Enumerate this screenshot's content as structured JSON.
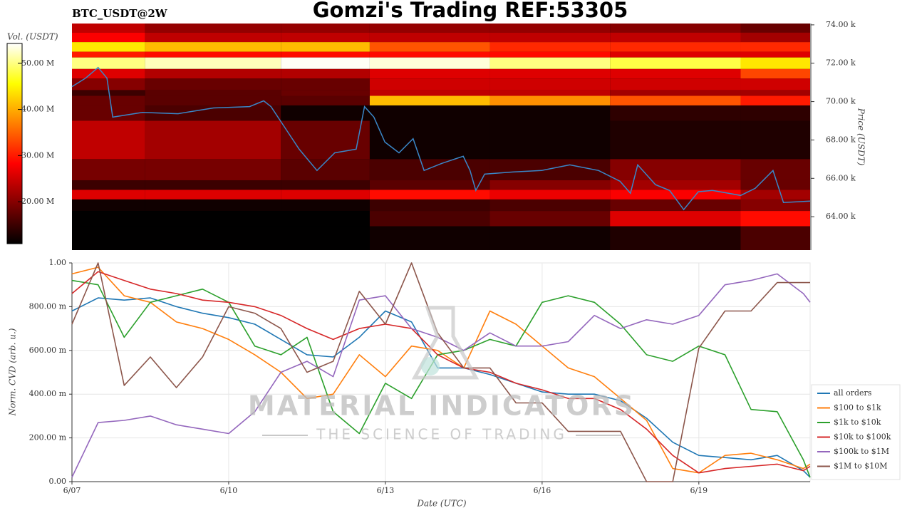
{
  "title": "Gomzi's Trading REF:53305",
  "watermark": {
    "name": "MATERIAL INDICATORS",
    "tagline": "THE SCIENCE OF TRADING"
  },
  "chart_data": [
    {
      "type": "heatmap",
      "label": "BTC_USDT@2W",
      "ylabel": "Price (USDT)",
      "xlim": [
        0,
        14.13
      ],
      "ylim": [
        62260,
        74070
      ],
      "yticks": [
        {
          "value": 64000,
          "label": "64.00 k"
        },
        {
          "value": 66000,
          "label": "66.00 k"
        },
        {
          "value": 68000,
          "label": "68.00 k"
        },
        {
          "value": 70000,
          "label": "70.00 k"
        },
        {
          "value": 72000,
          "label": "72.00 k"
        },
        {
          "value": 74000,
          "label": "74.00 k"
        }
      ],
      "x_edges": [
        0,
        1.4,
        4,
        5.7,
        8,
        10.3,
        12.8,
        14.13
      ],
      "price_edges": [
        74070,
        73600,
        73100,
        72600,
        72300,
        71700,
        71200,
        70600,
        70300,
        69800,
        69000,
        67000,
        65900,
        65400,
        64900,
        64300,
        63500,
        62260
      ],
      "volumes": [
        [
          24000000.0,
          21000000.0,
          21000000.0,
          21000000.0,
          21000000.0,
          20000000.0,
          18000000.0
        ],
        [
          28000000.0,
          24000000.0,
          24000000.0,
          24000000.0,
          24000000.0,
          24000000.0,
          22000000.0
        ],
        [
          44000000.0,
          41000000.0,
          41000000.0,
          34000000.0,
          31000000.0,
          31000000.0,
          31000000.0
        ],
        [
          30000000.0,
          29000000.0,
          29000000.0,
          29000000.0,
          29000000.0,
          26000000.0,
          26000000.0
        ],
        [
          50000000.0,
          52000000.0,
          54000000.0,
          53000000.0,
          50000000.0,
          48000000.0,
          44000000.0
        ],
        [
          26000000.0,
          23000000.0,
          23000000.0,
          26000000.0,
          26000000.0,
          26000000.0,
          33000000.0
        ],
        [
          20000000.0,
          18000000.0,
          18000000.0,
          25000000.0,
          25000000.0,
          25000000.0,
          25000000.0
        ],
        [
          15000000.0,
          17000000.0,
          18000000.0,
          24000000.0,
          24000000.0,
          22000000.0,
          22000000.0
        ],
        [
          18000000.0,
          17000000.0,
          17000000.0,
          41000000.0,
          38000000.0,
          34000000.0,
          30000000.0
        ],
        [
          18000000.0,
          16000000.0,
          12000000.0,
          12000000.0,
          12000000.0,
          14000000.0,
          14000000.0
        ],
        [
          24000000.0,
          22000000.0,
          18000000.0,
          12000000.0,
          12000000.0,
          13000000.0,
          13000000.0
        ],
        [
          19000000.0,
          19000000.0,
          17000000.0,
          16000000.0,
          16000000.0,
          20000000.0,
          18000000.0
        ],
        [
          15000000.0,
          15000000.0,
          15000000.0,
          17000000.0,
          20000000.0,
          22000000.0,
          18000000.0
        ],
        [
          26000000.0,
          26000000.0,
          26000000.0,
          29000000.0,
          27000000.0,
          28000000.0,
          22000000.0
        ],
        [
          12000000.0,
          12000000.0,
          12000000.0,
          15000000.0,
          16000000.0,
          18000000.0,
          20000000.0
        ],
        [
          11000000.0,
          11000000.0,
          11000000.0,
          16000000.0,
          18000000.0,
          26000000.0,
          29000000.0
        ],
        [
          11000000.0,
          11000000.0,
          11000000.0,
          12000000.0,
          12000000.0,
          13000000.0,
          16000000.0
        ]
      ],
      "colorbar": {
        "label": "Vol. (USDT)",
        "colormap": "hot",
        "lim": [
          10900000.0,
          54300000.0
        ],
        "ticks": [
          {
            "value": 20000000.0,
            "label": "20.00 M"
          },
          {
            "value": 30000000.0,
            "label": "30.00 M"
          },
          {
            "value": 40000000.0,
            "label": "40.00 M"
          },
          {
            "value": 50000000.0,
            "label": "50.00 M"
          }
        ]
      },
      "price_line": {
        "color": "#3a87c8",
        "x": [
          0,
          0.26,
          0.5,
          0.67,
          0.78,
          1.35,
          2.03,
          2.71,
          3.4,
          3.67,
          3.81,
          4.08,
          4.35,
          4.69,
          5.03,
          5.44,
          5.6,
          5.78,
          5.99,
          6.26,
          6.53,
          6.74,
          7.08,
          7.49,
          7.62,
          7.73,
          7.9,
          8.44,
          8.99,
          9.53,
          10.08,
          10.49,
          10.69,
          10.83,
          11.17,
          11.44,
          11.71,
          11.99,
          12.26,
          12.8,
          13.08,
          13.42,
          13.62,
          14.13
        ],
        "values": [
          70780,
          71220,
          71780,
          71220,
          69190,
          69440,
          69370,
          69670,
          69740,
          70040,
          69740,
          68630,
          67520,
          66410,
          67330,
          67520,
          69740,
          69190,
          67890,
          67330,
          68070,
          66410,
          66780,
          67150,
          66410,
          65370,
          66220,
          66330,
          66410,
          66700,
          66410,
          65850,
          65220,
          66700,
          65670,
          65370,
          64370,
          65300,
          65370,
          65110,
          65480,
          66410,
          64740,
          64810
        ]
      }
    },
    {
      "type": "line",
      "xlabel": "Date (UTC)",
      "ylabel": "Norm. CVD (arb. u.)",
      "grid": true,
      "legend": "lower right",
      "xlim": [
        0,
        14.13
      ],
      "ylim": [
        0,
        1
      ],
      "xticks": [
        {
          "value": 0,
          "label": "6/07"
        },
        {
          "value": 3,
          "label": "6/10"
        },
        {
          "value": 6,
          "label": "6/13"
        },
        {
          "value": 9,
          "label": "6/16"
        },
        {
          "value": 12,
          "label": "6/19"
        }
      ],
      "yticks": [
        {
          "value": 0,
          "label": "0.00"
        },
        {
          "value": 0.2,
          "label": "200.00 m"
        },
        {
          "value": 0.4,
          "label": "400.00 m"
        },
        {
          "value": 0.6,
          "label": "600.00 m"
        },
        {
          "value": 0.8,
          "label": "800.00 m"
        },
        {
          "value": 1,
          "label": "1.00"
        }
      ],
      "x": [
        0,
        0.5,
        1,
        1.5,
        2,
        2.5,
        3,
        3.5,
        4,
        4.5,
        5,
        5.5,
        6,
        6.5,
        7,
        7.5,
        8,
        8.5,
        9,
        9.5,
        10,
        10.5,
        11,
        11.5,
        12,
        12.5,
        13,
        13.5,
        14,
        14.13
      ],
      "series": [
        {
          "name": "all orders",
          "color": "#1f77b4",
          "values": [
            0.78,
            0.84,
            0.83,
            0.84,
            0.8,
            0.77,
            0.75,
            0.72,
            0.65,
            0.58,
            0.57,
            0.66,
            0.78,
            0.73,
            0.52,
            0.52,
            0.49,
            0.45,
            0.41,
            0.4,
            0.4,
            0.37,
            0.29,
            0.18,
            0.12,
            0.11,
            0.1,
            0.12,
            0.05,
            0.02
          ]
        },
        {
          "name": "$100 to $1k",
          "color": "#ff7f0e",
          "values": [
            0.95,
            0.98,
            0.85,
            0.82,
            0.73,
            0.7,
            0.65,
            0.58,
            0.5,
            0.38,
            0.4,
            0.58,
            0.48,
            0.62,
            0.6,
            0.52,
            0.78,
            0.72,
            0.62,
            0.52,
            0.48,
            0.38,
            0.28,
            0.06,
            0.04,
            0.12,
            0.13,
            0.1,
            0.06,
            0.08
          ]
        },
        {
          "name": "$1k to $10k",
          "color": "#2ca02c",
          "values": [
            0.92,
            0.9,
            0.66,
            0.82,
            0.85,
            0.88,
            0.82,
            0.62,
            0.58,
            0.66,
            0.32,
            0.22,
            0.45,
            0.38,
            0.58,
            0.6,
            0.65,
            0.62,
            0.82,
            0.85,
            0.82,
            0.72,
            0.58,
            0.55,
            0.62,
            0.58,
            0.33,
            0.32,
            0.1,
            0.02
          ]
        },
        {
          "name": "$10k to $100k",
          "color": "#d62728",
          "values": [
            0.86,
            0.96,
            0.92,
            0.88,
            0.86,
            0.83,
            0.82,
            0.8,
            0.76,
            0.7,
            0.65,
            0.7,
            0.72,
            0.7,
            0.58,
            0.52,
            0.5,
            0.45,
            0.42,
            0.38,
            0.38,
            0.33,
            0.24,
            0.12,
            0.04,
            0.06,
            0.07,
            0.08,
            0.05,
            0.07
          ]
        },
        {
          "name": "$100k to $1M",
          "color": "#9467bd",
          "values": [
            0.02,
            0.27,
            0.28,
            0.3,
            0.26,
            0.24,
            0.22,
            0.32,
            0.5,
            0.55,
            0.48,
            0.83,
            0.85,
            0.7,
            0.66,
            0.6,
            0.68,
            0.62,
            0.62,
            0.64,
            0.76,
            0.7,
            0.74,
            0.72,
            0.76,
            0.9,
            0.92,
            0.95,
            0.86,
            0.82
          ]
        },
        {
          "name": "$1M to $10M",
          "color": "#8c564b",
          "values": [
            0.72,
            1.0,
            0.44,
            0.57,
            0.43,
            0.57,
            0.8,
            0.77,
            0.7,
            0.5,
            0.55,
            0.87,
            0.72,
            1.0,
            0.68,
            0.52,
            0.52,
            0.36,
            0.36,
            0.23,
            0.23,
            0.23,
            0.0,
            0.0,
            0.61,
            0.78,
            0.78,
            0.91,
            0.91,
            0.91
          ]
        }
      ]
    }
  ]
}
